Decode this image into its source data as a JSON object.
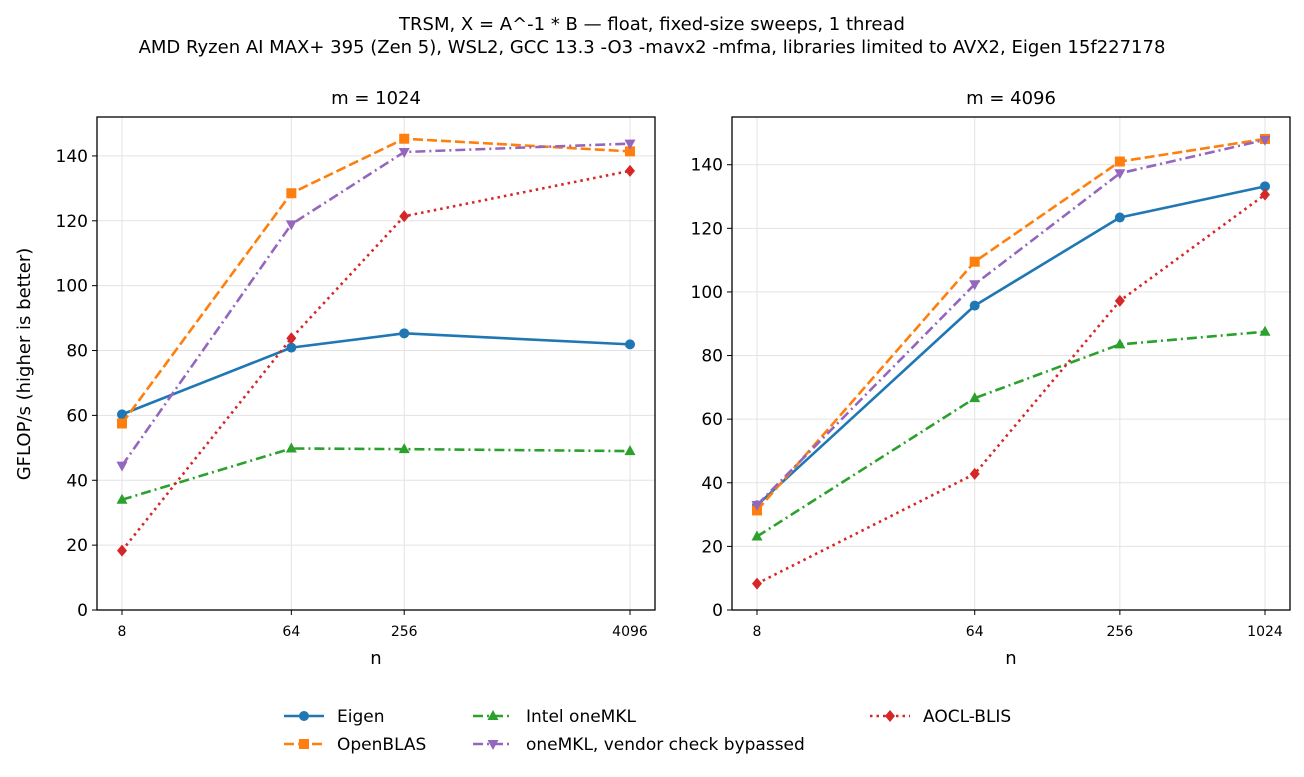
{
  "figure": {
    "title_line1": "TRSM, X = A^-1 * B — float, fixed-size sweeps, 1 thread",
    "title_line2": "AMD Ryzen AI MAX+ 395 (Zen 5), WSL2, GCC 13.3 -O3 -mavx2 -mfma, libraries limited to AVX2, Eigen 15f227178"
  },
  "colors": {
    "Eigen": "#1f77b4",
    "OpenBLAS": "#ff7f0e",
    "Intel oneMKL": "#2ca02c",
    "oneMKL, vendor check bypassed": "#9467bd",
    "AOCL-BLIS": "#d62728"
  },
  "legend": [
    {
      "name": "Eigen",
      "marker": "circle",
      "dash": "solid"
    },
    {
      "name": "OpenBLAS",
      "marker": "square",
      "dash": "dashed"
    },
    {
      "name": "Intel oneMKL",
      "marker": "triangle-up",
      "dash": "dashdot"
    },
    {
      "name": "oneMKL, vendor check bypassed",
      "marker": "triangle-down",
      "dash": "dashdot"
    },
    {
      "name": "AOCL-BLIS",
      "marker": "diamond",
      "dash": "dotted"
    }
  ],
  "chart_data": [
    {
      "type": "line",
      "title": "m = 1024",
      "xlabel": "n",
      "ylabel": "GFLOP/s (higher is better)",
      "xscale": "log2",
      "x": [
        8,
        64,
        256,
        4096
      ],
      "xticklabels": [
        "8",
        "64",
        "256",
        "4096"
      ],
      "ylim": [
        0,
        152
      ],
      "yticks": [
        0,
        20,
        40,
        60,
        80,
        100,
        120,
        140
      ],
      "grid": true,
      "series": [
        {
          "name": "Eigen",
          "values": [
            60.3,
            80.9,
            85.3,
            81.9
          ]
        },
        {
          "name": "OpenBLAS",
          "values": [
            57.5,
            128.5,
            145.3,
            141.4
          ]
        },
        {
          "name": "Intel oneMKL",
          "values": [
            34.0,
            49.8,
            49.6,
            49.0
          ]
        },
        {
          "name": "oneMKL, vendor check bypassed",
          "values": [
            44.5,
            118.9,
            141.2,
            143.8
          ]
        },
        {
          "name": "AOCL-BLIS",
          "values": [
            18.3,
            83.8,
            121.4,
            135.4
          ]
        }
      ]
    },
    {
      "type": "line",
      "title": "m = 4096",
      "xlabel": "n",
      "ylabel": "",
      "xscale": "log2",
      "x": [
        8,
        64,
        256,
        1024
      ],
      "xticklabels": [
        "8",
        "64",
        "256",
        "1024"
      ],
      "ylim": [
        0,
        155
      ],
      "yticks": [
        0,
        20,
        40,
        60,
        80,
        100,
        120,
        140
      ],
      "grid": true,
      "series": [
        {
          "name": "Eigen",
          "values": [
            32.9,
            95.7,
            123.4,
            133.2
          ]
        },
        {
          "name": "OpenBLAS",
          "values": [
            31.3,
            109.5,
            141.0,
            148.1
          ]
        },
        {
          "name": "Intel oneMKL",
          "values": [
            23.1,
            66.6,
            83.5,
            87.5
          ]
        },
        {
          "name": "oneMKL, vendor check bypassed",
          "values": [
            33.0,
            102.4,
            137.3,
            147.8
          ]
        },
        {
          "name": "AOCL-BLIS",
          "values": [
            8.3,
            42.8,
            97.2,
            130.6
          ]
        }
      ]
    }
  ]
}
